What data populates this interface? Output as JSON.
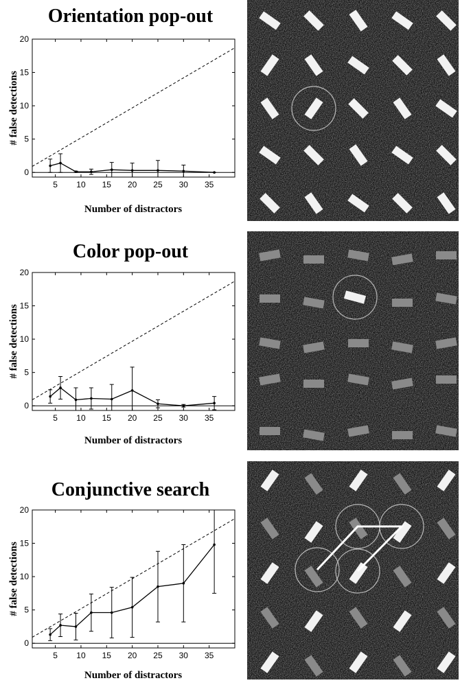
{
  "chart_data": [
    {
      "type": "line",
      "title": "Orientation pop-out",
      "xlabel": "Number of distractors",
      "ylabel": "# false detections",
      "x": [
        4,
        6,
        9,
        12,
        16,
        20,
        25,
        30,
        36
      ],
      "series": [
        {
          "color": "#000000",
          "values": [
            1.0,
            1.4,
            0.1,
            0.1,
            0.4,
            0.3,
            0.3,
            0.2,
            0
          ],
          "errors": [
            1.0,
            1.4,
            0.1,
            0.4,
            1.1,
            1.1,
            1.5,
            0.9,
            0
          ]
        },
        {
          "color": "#000000",
          "style": "dashed",
          "x": [
            0.5,
            40
          ],
          "values": [
            0.9,
            18.7
          ]
        }
      ],
      "xlim": [
        0.5,
        40
      ],
      "ylim": [
        -0.7,
        20
      ],
      "xticks": [
        5,
        10,
        15,
        20,
        25,
        30,
        35
      ],
      "yticks": [
        0,
        5,
        10,
        15,
        20
      ]
    },
    {
      "type": "line",
      "title": "Color pop-out",
      "xlabel": "Number of distractors",
      "ylabel": "# false detections",
      "x": [
        4,
        6,
        9,
        12,
        16,
        20,
        25,
        30,
        36
      ],
      "series": [
        {
          "color": "#000000",
          "values": [
            1.4,
            2.7,
            0.9,
            1.1,
            1.0,
            2.3,
            0.3,
            0.0,
            0.4
          ],
          "errors": [
            1.0,
            1.7,
            1.8,
            1.6,
            2.2,
            3.5,
            0.6,
            0.2,
            1.0
          ]
        },
        {
          "color": "#000000",
          "style": "dashed",
          "x": [
            0.5,
            40
          ],
          "values": [
            0.9,
            18.7
          ]
        }
      ],
      "xlim": [
        0.5,
        40
      ],
      "ylim": [
        -0.7,
        20
      ],
      "xticks": [
        5,
        10,
        15,
        20,
        25,
        30,
        35
      ],
      "yticks": [
        0,
        5,
        10,
        15,
        20
      ]
    },
    {
      "type": "line",
      "title": "Conjunctive search",
      "xlabel": "Number of distractors",
      "ylabel": "# false detections",
      "x": [
        4,
        6,
        9,
        12,
        16,
        20,
        25,
        30,
        36
      ],
      "series": [
        {
          "color": "#000000",
          "values": [
            1.3,
            2.7,
            2.5,
            4.6,
            4.6,
            5.4,
            8.5,
            9.0,
            14.8
          ],
          "errors": [
            0.9,
            1.7,
            2.0,
            2.8,
            3.8,
            4.5,
            5.3,
            5.8,
            7.3
          ]
        },
        {
          "color": "#000000",
          "style": "dashed",
          "x": [
            0.5,
            40
          ],
          "values": [
            0.9,
            18.7
          ]
        }
      ],
      "xlim": [
        0.5,
        40
      ],
      "ylim": [
        -0.7,
        20
      ],
      "xticks": [
        5,
        10,
        15,
        20,
        25,
        30,
        35
      ],
      "yticks": [
        0,
        5,
        10,
        15,
        20
      ]
    }
  ]
}
